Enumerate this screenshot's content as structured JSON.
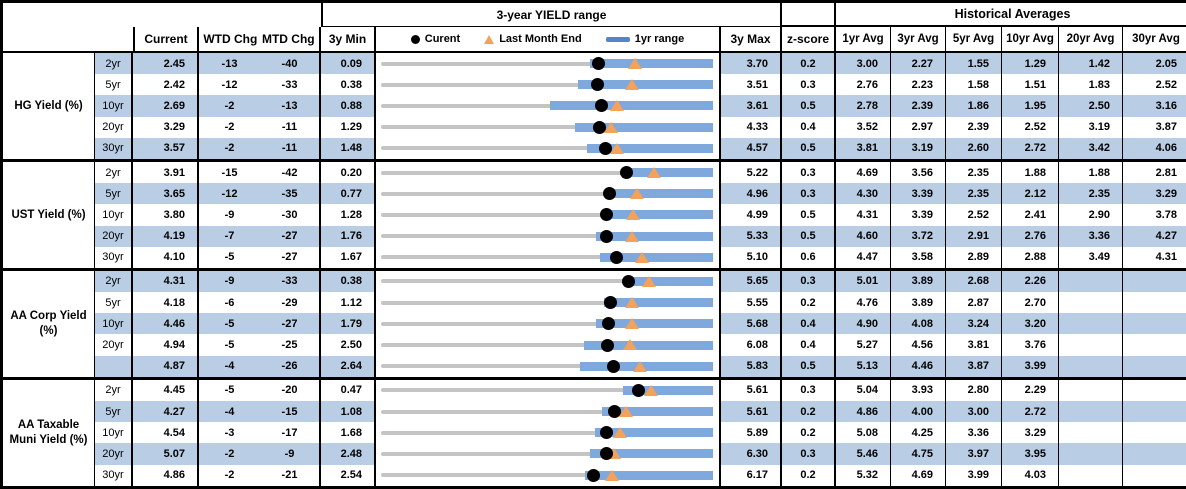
{
  "header": {
    "chart_title": "3-year YIELD range",
    "hist_title": "Historical Averages",
    "col_current": "Current",
    "col_wtd": "WTD Chg",
    "col_mtd": "MTD Chg",
    "col_3ymin": "3y Min",
    "col_3ymax": "3y Max",
    "col_zscore": "z-score",
    "avg_cols": [
      "1yr Avg",
      "3yr Avg",
      "5yr Avg",
      "10yr Avg",
      "20yr Avg",
      "30yr Avg"
    ],
    "legend": {
      "current": "Curent",
      "last_month_end": "Last Month End",
      "range": "1yr range"
    }
  },
  "colors": {
    "band": "#B9CDE5",
    "bar": "#7FA8DC",
    "legend_line": "#5585C4",
    "triangle": "#F2A25B",
    "dot": "#000000",
    "track": "#C4C4C4"
  },
  "chart_data": {
    "type": "range-dot",
    "note": "Each row is a bullet chart scaled from 3y Min to 3y Max; dot=Current, triangle=Last Month End, blue bar=1yr range (bar_hi equals 3y Max), values in percent; lme and bar_lo estimated from chart pixels",
    "groups": [
      {
        "label": "HG Yield (%)",
        "rows": [
          {
            "tenor": "2yr",
            "current": "2.45",
            "wtd": "-13",
            "mtd": "-40",
            "min": "0.09",
            "max": "3.70",
            "z": "0.2",
            "avgs": [
              "3.00",
              "2.27",
              "1.55",
              "1.29",
              "1.42",
              "2.05"
            ],
            "lme": 2.85,
            "bar_lo": 2.36
          },
          {
            "tenor": "5yr",
            "current": "2.42",
            "wtd": "-12",
            "mtd": "-33",
            "min": "0.38",
            "max": "3.51",
            "z": "0.3",
            "avgs": [
              "2.76",
              "2.23",
              "1.58",
              "1.51",
              "1.83",
              "2.52"
            ],
            "lme": 2.75,
            "bar_lo": 2.24
          },
          {
            "tenor": "10yr",
            "current": "2.69",
            "wtd": "-2",
            "mtd": "-13",
            "min": "0.88",
            "max": "3.61",
            "z": "0.5",
            "avgs": [
              "2.78",
              "2.39",
              "1.86",
              "1.95",
              "2.50",
              "3.16"
            ],
            "lme": 2.82,
            "bar_lo": 2.27
          },
          {
            "tenor": "20yr",
            "current": "3.29",
            "wtd": "-2",
            "mtd": "-11",
            "min": "1.29",
            "max": "4.33",
            "z": "0.4",
            "avgs": [
              "3.52",
              "2.97",
              "2.39",
              "2.52",
              "3.19",
              "3.87"
            ],
            "lme": 3.4,
            "bar_lo": 3.07
          },
          {
            "tenor": "30yr",
            "current": "3.57",
            "wtd": "-2",
            "mtd": "-11",
            "min": "1.48",
            "max": "4.57",
            "z": "0.5",
            "avgs": [
              "3.81",
              "3.19",
              "2.60",
              "2.72",
              "3.42",
              "4.06"
            ],
            "lme": 3.68,
            "bar_lo": 3.4
          }
        ]
      },
      {
        "label": "UST Yield (%)",
        "rows": [
          {
            "tenor": "2yr",
            "current": "3.91",
            "wtd": "-15",
            "mtd": "-42",
            "min": "0.20",
            "max": "5.22",
            "z": "0.3",
            "avgs": [
              "4.69",
              "3.56",
              "2.35",
              "1.88",
              "1.88",
              "2.81"
            ],
            "lme": 4.33,
            "bar_lo": 3.85
          },
          {
            "tenor": "5yr",
            "current": "3.65",
            "wtd": "-12",
            "mtd": "-35",
            "min": "0.77",
            "max": "4.96",
            "z": "0.3",
            "avgs": [
              "4.30",
              "3.39",
              "2.35",
              "2.12",
              "2.35",
              "3.29"
            ],
            "lme": 4.0,
            "bar_lo": 3.6
          },
          {
            "tenor": "10yr",
            "current": "3.80",
            "wtd": "-9",
            "mtd": "-30",
            "min": "1.28",
            "max": "4.99",
            "z": "0.5",
            "avgs": [
              "4.31",
              "3.39",
              "2.52",
              "2.41",
              "2.90",
              "3.78"
            ],
            "lme": 4.1,
            "bar_lo": 3.75
          },
          {
            "tenor": "20yr",
            "current": "4.19",
            "wtd": "-7",
            "mtd": "-27",
            "min": "1.76",
            "max": "5.33",
            "z": "0.5",
            "avgs": [
              "4.60",
              "3.72",
              "2.91",
              "2.76",
              "3.36",
              "4.27"
            ],
            "lme": 4.46,
            "bar_lo": 4.07
          },
          {
            "tenor": "30yr",
            "current": "4.10",
            "wtd": "-5",
            "mtd": "-27",
            "min": "1.67",
            "max": "5.10",
            "z": "0.6",
            "avgs": [
              "4.47",
              "3.58",
              "2.89",
              "2.88",
              "3.49",
              "4.31"
            ],
            "lme": 4.37,
            "bar_lo": 3.93
          }
        ]
      },
      {
        "label": "AA Corp Yield (%)",
        "rows": [
          {
            "tenor": "2yr",
            "current": "4.31",
            "wtd": "-9",
            "mtd": "-33",
            "min": "0.38",
            "max": "5.65",
            "z": "0.3",
            "avgs": [
              "5.01",
              "3.89",
              "2.68",
              "2.26",
              "",
              ""
            ],
            "lme": 4.64,
            "bar_lo": 4.23
          },
          {
            "tenor": "5yr",
            "current": "4.18",
            "wtd": "-6",
            "mtd": "-29",
            "min": "1.12",
            "max": "5.55",
            "z": "0.2",
            "avgs": [
              "4.76",
              "3.89",
              "2.87",
              "2.70",
              "",
              ""
            ],
            "lme": 4.47,
            "bar_lo": 4.1
          },
          {
            "tenor": "10yr",
            "current": "4.46",
            "wtd": "-5",
            "mtd": "-27",
            "min": "1.79",
            "max": "5.68",
            "z": "0.4",
            "avgs": [
              "4.90",
              "4.08",
              "3.24",
              "3.20",
              "",
              ""
            ],
            "lme": 4.73,
            "bar_lo": 4.31
          },
          {
            "tenor": "20yr",
            "current": "4.94",
            "wtd": "-5",
            "mtd": "-25",
            "min": "2.50",
            "max": "6.08",
            "z": "0.4",
            "avgs": [
              "5.27",
              "4.56",
              "3.81",
              "3.76",
              "",
              ""
            ],
            "lme": 5.19,
            "bar_lo": 4.69
          },
          {
            "tenor": "",
            "current": "4.87",
            "wtd": "-4",
            "mtd": "-26",
            "min": "2.64",
            "max": "5.83",
            "z": "0.5",
            "avgs": [
              "5.13",
              "4.46",
              "3.87",
              "3.99",
              "",
              ""
            ],
            "lme": 5.13,
            "bar_lo": 4.55
          }
        ]
      },
      {
        "label": "AA Taxable Muni Yield (%)",
        "rows": [
          {
            "tenor": "2yr",
            "current": "4.45",
            "wtd": "-5",
            "mtd": "-20",
            "min": "0.47",
            "max": "5.61",
            "z": "0.3",
            "avgs": [
              "5.04",
              "3.93",
              "2.80",
              "2.29",
              "",
              ""
            ],
            "lme": 4.65,
            "bar_lo": 4.22
          },
          {
            "tenor": "5yr",
            "current": "4.27",
            "wtd": "-4",
            "mtd": "-15",
            "min": "1.08",
            "max": "5.61",
            "z": "0.2",
            "avgs": [
              "4.86",
              "4.00",
              "3.00",
              "2.72",
              "",
              ""
            ],
            "lme": 4.42,
            "bar_lo": 4.09
          },
          {
            "tenor": "10yr",
            "current": "4.54",
            "wtd": "-3",
            "mtd": "-17",
            "min": "1.68",
            "max": "5.89",
            "z": "0.2",
            "avgs": [
              "5.08",
              "4.25",
              "3.36",
              "3.29",
              "",
              ""
            ],
            "lme": 4.71,
            "bar_lo": 4.4
          },
          {
            "tenor": "20yr",
            "current": "5.07",
            "wtd": "-2",
            "mtd": "-9",
            "min": "2.48",
            "max": "6.30",
            "z": "0.3",
            "avgs": [
              "5.46",
              "4.75",
              "3.97",
              "3.95",
              "",
              ""
            ],
            "lme": 5.16,
            "bar_lo": 4.89
          },
          {
            "tenor": "30yr",
            "current": "4.86",
            "wtd": "-2",
            "mtd": "-21",
            "min": "2.54",
            "max": "6.17",
            "z": "0.2",
            "avgs": [
              "5.32",
              "4.69",
              "3.99",
              "4.03",
              "",
              ""
            ],
            "lme": 5.07,
            "bar_lo": 4.77
          }
        ]
      }
    ]
  }
}
